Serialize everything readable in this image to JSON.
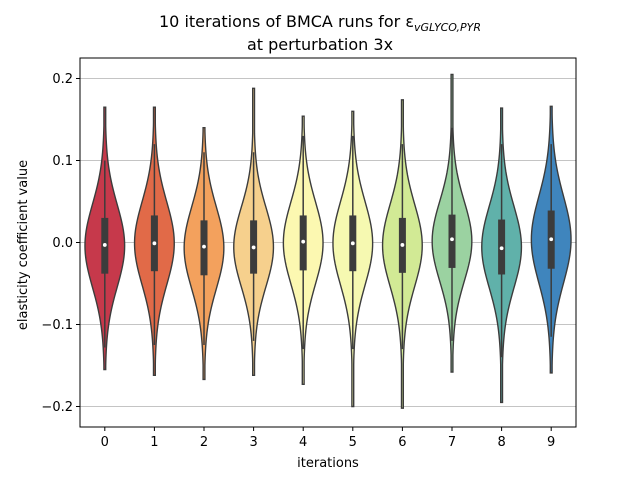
{
  "chart_data": {
    "type": "violin",
    "title_line1": "10 iterations of BMCA runs for ε",
    "title_subscript": "vGLYCO,PYR",
    "title_line2": "at perturbation 3x",
    "xlabel": "iterations",
    "ylabel": "elasticity coefficient value",
    "ylim": [
      -0.225,
      0.225
    ],
    "yticks": [
      -0.2,
      -0.1,
      0.0,
      0.1,
      0.2
    ],
    "ytick_labels": [
      "−0.2",
      "−0.1",
      "0.0",
      "0.1",
      "0.2"
    ],
    "grid": "horizontal",
    "categories": [
      "0",
      "1",
      "2",
      "3",
      "4",
      "5",
      "6",
      "7",
      "8",
      "9"
    ],
    "colors": [
      "#c6394b",
      "#e16a48",
      "#f3a15d",
      "#f6d08d",
      "#fcf8b1",
      "#f6f9b1",
      "#d2ea95",
      "#9bd2a1",
      "#60b1aa",
      "#3f85bd"
    ],
    "series": [
      {
        "category": "0",
        "min": -0.155,
        "q1": -0.038,
        "median": -0.003,
        "q3": 0.03,
        "max": 0.165,
        "whisker_low": -0.128,
        "whisker_high": 0.1
      },
      {
        "category": "1",
        "min": -0.162,
        "q1": -0.035,
        "median": -0.001,
        "q3": 0.033,
        "max": 0.165,
        "whisker_low": -0.125,
        "whisker_high": 0.12
      },
      {
        "category": "2",
        "min": -0.167,
        "q1": -0.04,
        "median": -0.005,
        "q3": 0.027,
        "max": 0.14,
        "whisker_low": -0.125,
        "whisker_high": 0.11
      },
      {
        "category": "3",
        "min": -0.162,
        "q1": -0.038,
        "median": -0.006,
        "q3": 0.027,
        "max": 0.188,
        "whisker_low": -0.12,
        "whisker_high": 0.11
      },
      {
        "category": "4",
        "min": -0.173,
        "q1": -0.034,
        "median": 0.001,
        "q3": 0.033,
        "max": 0.154,
        "whisker_low": -0.13,
        "whisker_high": 0.13
      },
      {
        "category": "5",
        "min": -0.2,
        "q1": -0.035,
        "median": -0.001,
        "q3": 0.033,
        "max": 0.16,
        "whisker_low": -0.13,
        "whisker_high": 0.13
      },
      {
        "category": "6",
        "min": -0.202,
        "q1": -0.037,
        "median": -0.003,
        "q3": 0.03,
        "max": 0.174,
        "whisker_low": -0.13,
        "whisker_high": 0.12
      },
      {
        "category": "7",
        "min": -0.158,
        "q1": -0.031,
        "median": 0.004,
        "q3": 0.034,
        "max": 0.205,
        "whisker_low": -0.12,
        "whisker_high": 0.14
      },
      {
        "category": "8",
        "min": -0.195,
        "q1": -0.039,
        "median": -0.007,
        "q3": 0.028,
        "max": 0.164,
        "whisker_low": -0.14,
        "whisker_high": 0.12
      },
      {
        "category": "9",
        "min": -0.159,
        "q1": -0.032,
        "median": 0.004,
        "q3": 0.039,
        "max": 0.166,
        "whisker_low": -0.115,
        "whisker_high": 0.12
      }
    ]
  }
}
